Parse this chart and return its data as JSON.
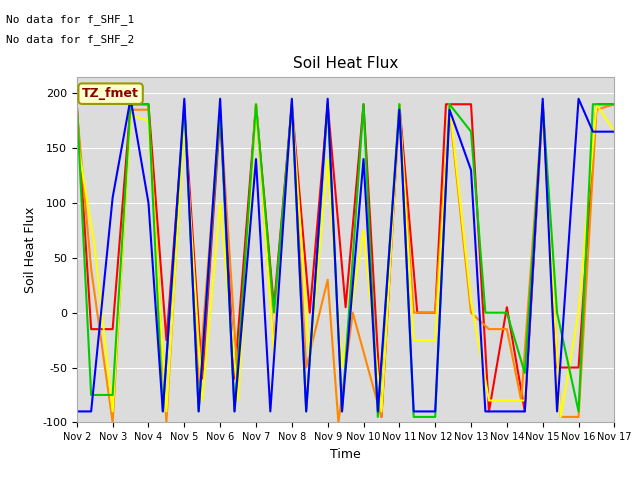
{
  "title": "Soil Heat Flux",
  "ylabel": "Soil Heat Flux",
  "xlabel": "Time",
  "note1": "No data for f_SHF_1",
  "note2": "No data for f_SHF_2",
  "tz_label": "TZ_fmet",
  "ylim": [
    -100,
    215
  ],
  "xlim": [
    0,
    15
  ],
  "xtick_labels": [
    "Nov 2",
    "Nov 3",
    "Nov 4",
    "Nov 5",
    "Nov 6",
    "Nov 7",
    "Nov 8",
    "Nov 9",
    "Nov 10",
    "Nov 11",
    "Nov 12",
    "Nov 13",
    "Nov 14",
    "Nov 15",
    "Nov 16",
    "Nov 17"
  ],
  "colors": {
    "SHF1": "#ff0000",
    "SHF2": "#ff8800",
    "SHF3": "#ffff00",
    "SHF4": "#00cc00",
    "SHF5": "#0000ff"
  },
  "SHF1_x": [
    0,
    0.4,
    1,
    1.5,
    2,
    2.5,
    3,
    3.5,
    4,
    4.4,
    5,
    5.5,
    6,
    6.5,
    7,
    7.5,
    8,
    8.5,
    9,
    9.5,
    10,
    10.3,
    11,
    11.5,
    12,
    12.5,
    13,
    13.4,
    14,
    14.5,
    15
  ],
  "SHF1_y": [
    190,
    -15,
    -15,
    190,
    190,
    -25,
    185,
    -60,
    180,
    -60,
    190,
    5,
    190,
    0,
    190,
    5,
    190,
    -95,
    190,
    0,
    0,
    190,
    190,
    -90,
    5,
    -90,
    190,
    -50,
    -50,
    190,
    190
  ],
  "SHF2_x": [
    0,
    0.4,
    1,
    1.5,
    2,
    2.5,
    3,
    3.4,
    4,
    4.5,
    5,
    5.5,
    6,
    6.4,
    7,
    7.3,
    7.7,
    8.5,
    9,
    9.4,
    10,
    10.4,
    11,
    11.5,
    12,
    12.4,
    13,
    13.5,
    14,
    14.5,
    15
  ],
  "SHF2_y": [
    185,
    40,
    -100,
    185,
    185,
    -100,
    185,
    -65,
    185,
    -65,
    190,
    -30,
    190,
    -50,
    30,
    -100,
    0,
    -95,
    185,
    0,
    0,
    185,
    0,
    -15,
    -15,
    -80,
    190,
    -95,
    -95,
    185,
    190
  ],
  "SHF3_x": [
    0,
    0.5,
    1,
    1.5,
    2,
    2.5,
    3,
    3.5,
    4,
    4.5,
    5,
    5.5,
    6,
    6.5,
    7,
    7.4,
    8,
    8.5,
    9,
    9.4,
    10,
    10.4,
    11,
    11.5,
    12,
    12.5,
    13,
    13.5,
    14,
    14.5,
    15
  ],
  "SHF3_y": [
    160,
    60,
    -90,
    180,
    175,
    -90,
    175,
    -80,
    100,
    -80,
    190,
    -35,
    190,
    -45,
    140,
    -50,
    75,
    -90,
    190,
    -25,
    -25,
    190,
    10,
    -80,
    -80,
    -80,
    190,
    -95,
    0,
    190,
    165
  ],
  "SHF4_x": [
    0,
    0.4,
    1,
    1.5,
    2,
    2.4,
    3,
    3.4,
    4,
    4.4,
    5,
    5.5,
    6,
    6.4,
    7,
    7.4,
    8,
    8.4,
    9,
    9.4,
    10,
    10.4,
    11,
    11.4,
    12,
    12.5,
    13,
    13.4,
    14,
    14.4,
    15
  ],
  "SHF4_y": [
    190,
    -75,
    -75,
    190,
    190,
    -90,
    190,
    -90,
    185,
    -90,
    190,
    0,
    190,
    -90,
    190,
    -90,
    190,
    -95,
    190,
    -95,
    -95,
    190,
    165,
    0,
    0,
    -55,
    190,
    0,
    -90,
    190,
    190
  ],
  "SHF5_x": [
    0,
    0.4,
    1,
    1.5,
    2,
    2.4,
    3,
    3.4,
    4,
    4.4,
    5,
    5.4,
    6,
    6.4,
    7,
    7.4,
    8,
    8.4,
    9,
    9.4,
    10,
    10.4,
    11,
    11.4,
    12,
    12.5,
    13,
    13.4,
    14,
    14.4,
    15
  ],
  "SHF5_y": [
    -90,
    -90,
    105,
    195,
    100,
    -90,
    195,
    -90,
    195,
    -90,
    140,
    -90,
    195,
    -90,
    195,
    -90,
    140,
    -90,
    185,
    -90,
    -90,
    185,
    130,
    -90,
    -90,
    -90,
    195,
    -90,
    195,
    165,
    165
  ],
  "bg_color": "#dcdcdc",
  "grid_color": "#ffffff",
  "linewidth": 1.5
}
